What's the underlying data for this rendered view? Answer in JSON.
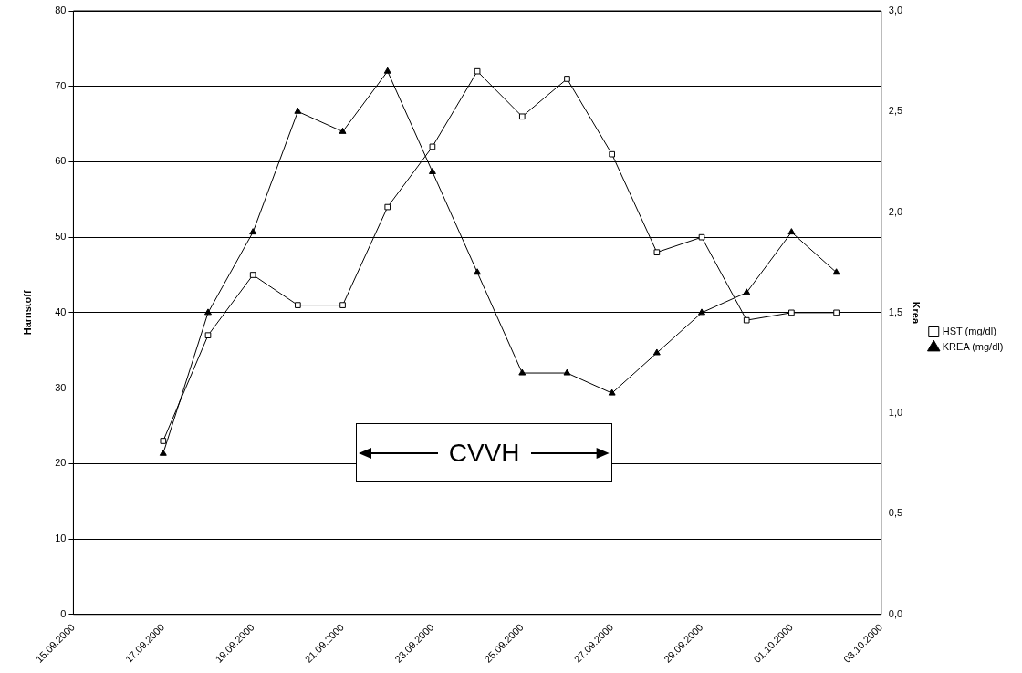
{
  "chart_data": {
    "type": "line",
    "xlabel": null,
    "ylabel": "Harnstoff",
    "y2label": "Krea",
    "x": [
      "2000-09-17",
      "2000-09-18",
      "2000-09-19",
      "2000-09-20",
      "2000-09-21",
      "2000-09-22",
      "2000-09-23",
      "2000-09-24",
      "2000-09-25",
      "2000-09-26",
      "2000-09-27",
      "2000-09-28",
      "2000-09-29",
      "2000-09-30",
      "2000-10-01",
      "2000-10-02"
    ],
    "series": [
      {
        "name": "HST (mg/dl)",
        "color": "#000000",
        "marker": "square",
        "values": [
          23,
          37,
          45,
          41,
          41,
          54,
          62,
          72,
          66,
          71,
          61,
          48,
          50,
          39,
          40,
          40
        ]
      },
      {
        "name": "KREA (mg/dl)",
        "color": "#000000",
        "marker": "triangle",
        "axis": "y2",
        "values": [
          0.8,
          1.5,
          1.9,
          2.5,
          2.4,
          2.7,
          2.2,
          1.7,
          1.2,
          1.2,
          1.1,
          1.3,
          1.5,
          1.6,
          1.9,
          1.7
        ]
      }
    ],
    "xlim": [
      "2000-09-15",
      "2000-10-03"
    ],
    "xticks": [
      {
        "value": "2000-09-15",
        "label": "15.09.2000"
      },
      {
        "value": "2000-09-17",
        "label": "17.09.2000"
      },
      {
        "value": "2000-09-19",
        "label": "19.09.2000"
      },
      {
        "value": "2000-09-21",
        "label": "21.09.2000"
      },
      {
        "value": "2000-09-23",
        "label": "23.09.2000"
      },
      {
        "value": "2000-09-25",
        "label": "25.09.2000"
      },
      {
        "value": "2000-09-27",
        "label": "27.09.2000"
      },
      {
        "value": "2000-09-29",
        "label": "29.09.2000"
      },
      {
        "value": "2000-10-01",
        "label": "01.10.2000"
      },
      {
        "value": "2000-10-03",
        "label": "03.10.2000"
      }
    ],
    "ylim": [
      0,
      80
    ],
    "yticks": [
      0,
      10,
      20,
      30,
      40,
      50,
      60,
      70,
      80
    ],
    "y2lim": [
      0,
      3
    ],
    "y2ticks": [
      {
        "value": 0,
        "label": "0,0"
      },
      {
        "value": 0.5,
        "label": "0,5"
      },
      {
        "value": 1,
        "label": "1,0"
      },
      {
        "value": 1.5,
        "label": "1,5"
      },
      {
        "value": 2,
        "label": "2,0"
      },
      {
        "value": 2.5,
        "label": "2,5"
      },
      {
        "value": 3,
        "label": "3,0"
      }
    ],
    "annotations": [
      "CVVH"
    ],
    "grid": "y",
    "legend": "right",
    "line_style": "solid"
  }
}
